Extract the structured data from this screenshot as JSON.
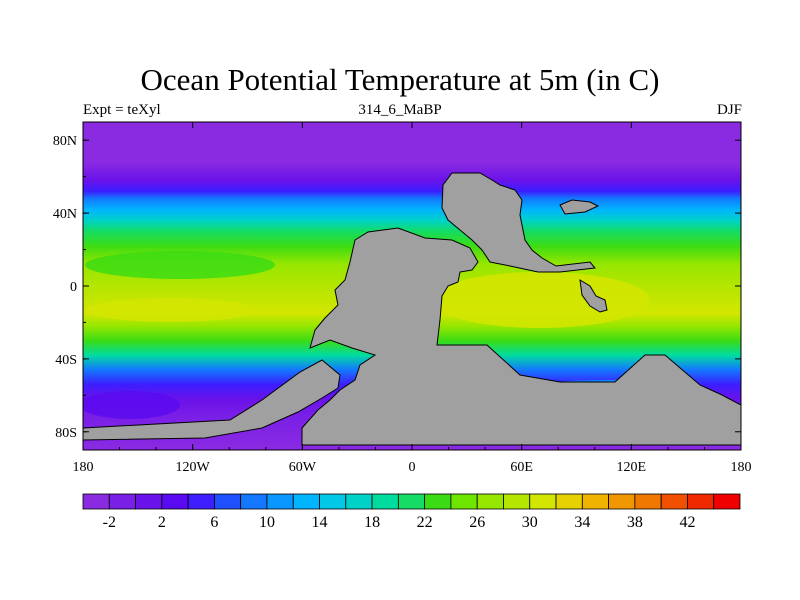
{
  "title": "Ocean Potential Temperature at 5m (in C)",
  "subtitle_left": "Expt = teXyl",
  "subtitle_center": "314_6_MaBP",
  "subtitle_right": "DJF",
  "y_ticks": [
    {
      "label": "80N",
      "lat": 80
    },
    {
      "label": "40N",
      "lat": 40
    },
    {
      "label": "0",
      "lat": 0
    },
    {
      "label": "40S",
      "lat": -40
    },
    {
      "label": "80S",
      "lat": -80
    }
  ],
  "x_ticks": [
    {
      "label": "180",
      "lon": -180
    },
    {
      "label": "120W",
      "lon": -120
    },
    {
      "label": "60W",
      "lon": -60
    },
    {
      "label": "0",
      "lon": 0
    },
    {
      "label": "60E",
      "lon": 60
    },
    {
      "label": "120E",
      "lon": 120
    },
    {
      "label": "180",
      "lon": 180
    }
  ],
  "colorbar": {
    "labels": [
      "-2",
      "2",
      "6",
      "10",
      "14",
      "18",
      "22",
      "26",
      "30",
      "34",
      "38",
      "42"
    ],
    "colors": [
      "#8a2be2",
      "#7a1fe6",
      "#6a12ea",
      "#5a0af0",
      "#3c1eff",
      "#1e50ff",
      "#1478ff",
      "#0a96ff",
      "#00b4ff",
      "#00c8e6",
      "#00d2c8",
      "#00dca0",
      "#14dc64",
      "#3cdc14",
      "#6ee600",
      "#96e600",
      "#b4e600",
      "#d2e600",
      "#e6d200",
      "#f0b400",
      "#f09600",
      "#f07800",
      "#f05000",
      "#f02800",
      "#f00000"
    ]
  },
  "land_color": "#a0a0a0",
  "lat_bands": [
    {
      "lat": 90,
      "color": "#8a2be2"
    },
    {
      "lat": 68,
      "color": "#8a2be2"
    },
    {
      "lat": 58,
      "color": "#6a12ea"
    },
    {
      "lat": 52,
      "color": "#3c1eff"
    },
    {
      "lat": 48,
      "color": "#1478ff"
    },
    {
      "lat": 42,
      "color": "#00b4ff"
    },
    {
      "lat": 36,
      "color": "#00d2c8"
    },
    {
      "lat": 30,
      "color": "#14dc64"
    },
    {
      "lat": 22,
      "color": "#3cdc14"
    },
    {
      "lat": 12,
      "color": "#96e600"
    },
    {
      "lat": 0,
      "color": "#b4e600"
    },
    {
      "lat": -15,
      "color": "#d2e600"
    },
    {
      "lat": -22,
      "color": "#96e600"
    },
    {
      "lat": -30,
      "color": "#3cdc14"
    },
    {
      "lat": -38,
      "color": "#00dca0"
    },
    {
      "lat": -46,
      "color": "#1478ff"
    },
    {
      "lat": -54,
      "color": "#3c1eff"
    },
    {
      "lat": -62,
      "color": "#6a12ea"
    },
    {
      "lat": -72,
      "color": "#7a1fe6"
    },
    {
      "lat": -90,
      "color": "#8a2be2"
    }
  ]
}
